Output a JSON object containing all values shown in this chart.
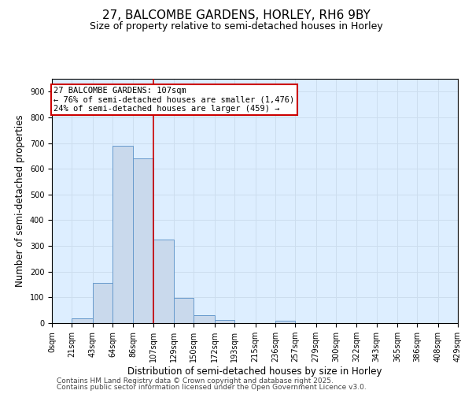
{
  "title1": "27, BALCOMBE GARDENS, HORLEY, RH6 9BY",
  "title2": "Size of property relative to semi-detached houses in Horley",
  "xlabel": "Distribution of semi-detached houses by size in Horley",
  "ylabel": "Number of semi-detached properties",
  "bin_edges": [
    0,
    21,
    43,
    64,
    86,
    107,
    129,
    150,
    172,
    193,
    215,
    236,
    257,
    279,
    300,
    322,
    343,
    365,
    386,
    408,
    429
  ],
  "bar_heights": [
    0,
    18,
    155,
    690,
    640,
    325,
    98,
    30,
    12,
    0,
    0,
    10,
    0,
    0,
    0,
    0,
    0,
    0,
    0,
    0
  ],
  "bar_color": "#c9d9ec",
  "bar_edge_color": "#6699cc",
  "vline_x": 107,
  "vline_color": "#cc0000",
  "annotation_title": "27 BALCOMBE GARDENS: 107sqm",
  "annotation_line2": "← 76% of semi-detached houses are smaller (1,476)",
  "annotation_line3": "24% of semi-detached houses are larger (459) →",
  "annotation_box_color": "#cc0000",
  "annotation_text_color": "#000000",
  "annotation_bg": "#ffffff",
  "ylim": [
    0,
    950
  ],
  "yticks": [
    0,
    100,
    200,
    300,
    400,
    500,
    600,
    700,
    800,
    900
  ],
  "grid_color": "#ccddee",
  "bg_color": "#ddeeff",
  "footer1": "Contains HM Land Registry data © Crown copyright and database right 2025.",
  "footer2": "Contains public sector information licensed under the Open Government Licence v3.0.",
  "title_fontsize": 11,
  "subtitle_fontsize": 9,
  "tick_fontsize": 7,
  "label_fontsize": 8.5,
  "footer_fontsize": 6.5
}
